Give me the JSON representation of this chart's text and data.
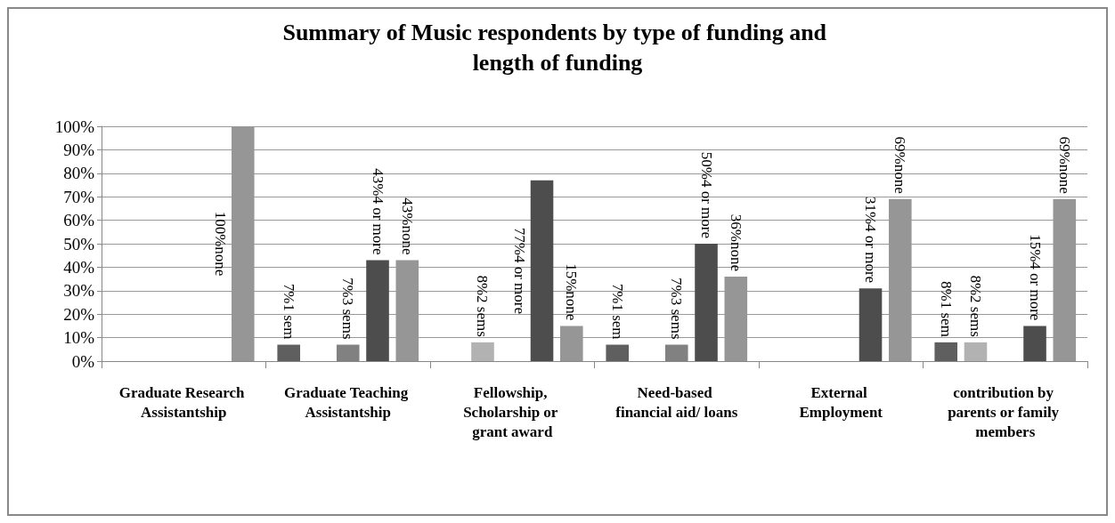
{
  "chart_data": {
    "type": "bar",
    "title": "Summary of Music respondents by type of funding and length of funding",
    "categories": [
      "Graduate Research Assistantship",
      "Graduate Teaching Assistantship",
      "Fellowship, Scholarship or grant award",
      "Need-based financial aid/ loans",
      "External Employment",
      "contribution by parents or family members"
    ],
    "series": [
      {
        "color": "#5f5f5f",
        "values": [
          null,
          7,
          null,
          7,
          null,
          8
        ],
        "value_labels": [
          null,
          "7%1 sem",
          null,
          "7%1 sem",
          null,
          "8%1 sem"
        ]
      },
      {
        "color": "#b2b2b2",
        "values": [
          null,
          null,
          8,
          null,
          null,
          8
        ],
        "value_labels": [
          null,
          null,
          "8%2 sems",
          null,
          null,
          "8%2 sems"
        ]
      },
      {
        "color": "#818181",
        "values": [
          null,
          7,
          null,
          7,
          null,
          null
        ],
        "value_labels": [
          null,
          "7%3 sems",
          null,
          "7%3 sems",
          null,
          null
        ]
      },
      {
        "color": "#4d4d4d",
        "values": [
          null,
          43,
          77,
          50,
          31,
          15
        ],
        "value_labels": [
          null,
          "43%4 or more",
          "77%4 or more",
          "50%4 or more",
          "31%4 or more",
          "15%4 or more"
        ]
      },
      {
        "color": "#969696",
        "values": [
          100,
          43,
          15,
          36,
          69,
          69
        ],
        "value_labels": [
          "100%none",
          "43%none",
          "15%none",
          "36%none",
          "69%none",
          "69%none"
        ]
      }
    ],
    "ylim": [
      0,
      100
    ],
    "yticks": [
      {
        "value": 0,
        "label": "0%"
      },
      {
        "value": 10,
        "label": "10%"
      },
      {
        "value": 20,
        "label": "20%"
      },
      {
        "value": 30,
        "label": "30%"
      },
      {
        "value": 40,
        "label": "40%"
      },
      {
        "value": 50,
        "label": "50%"
      },
      {
        "value": 60,
        "label": "60%"
      },
      {
        "value": 70,
        "label": "70%"
      },
      {
        "value": 80,
        "label": "80%"
      },
      {
        "value": 90,
        "label": "90%"
      },
      {
        "value": 100,
        "label": "100%"
      }
    ],
    "grid": "y"
  }
}
